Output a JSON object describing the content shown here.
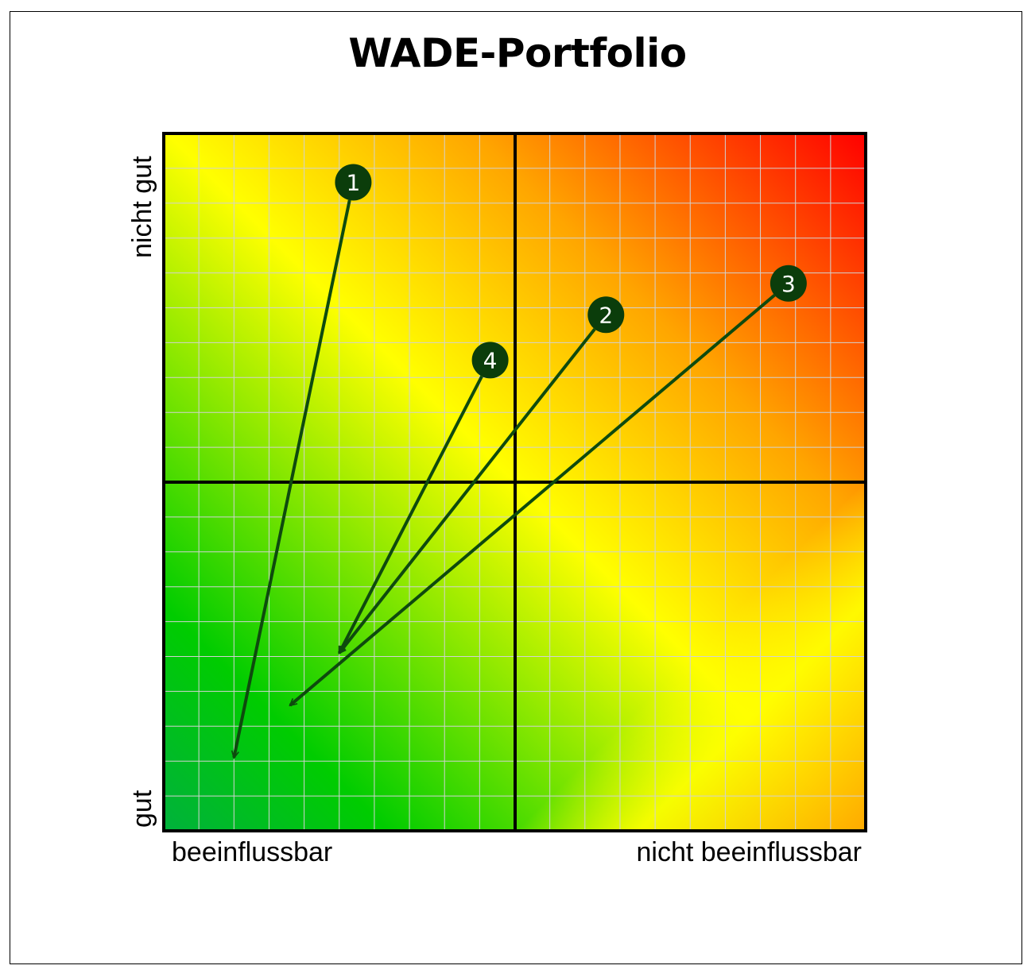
{
  "title": "WADE-Portfolio",
  "axes": {
    "x_low": "beeinflussbar",
    "x_high": "nicht beeinflussbar",
    "y_high": "nicht gut",
    "y_low": "gut"
  },
  "colors": {
    "marker": "#0b3d0b",
    "arrow": "#0e4a0e",
    "grid": "#d2d2d2",
    "border": "#000000"
  },
  "chart_data": {
    "type": "scatter",
    "xlim": [
      0,
      20
    ],
    "ylim": [
      0,
      20
    ],
    "grid": true,
    "points": [
      {
        "label": "1",
        "x": 5.4,
        "y": 18.6,
        "to_x": 2.0,
        "to_y": 2.1
      },
      {
        "label": "2",
        "x": 12.6,
        "y": 14.8,
        "to_x": 5.0,
        "to_y": 5.1
      },
      {
        "label": "3",
        "x": 17.8,
        "y": 15.7,
        "to_x": 3.6,
        "to_y": 3.6
      },
      {
        "label": "4",
        "x": 9.3,
        "y": 13.5,
        "to_x": 5.0,
        "to_y": 5.1
      }
    ]
  }
}
